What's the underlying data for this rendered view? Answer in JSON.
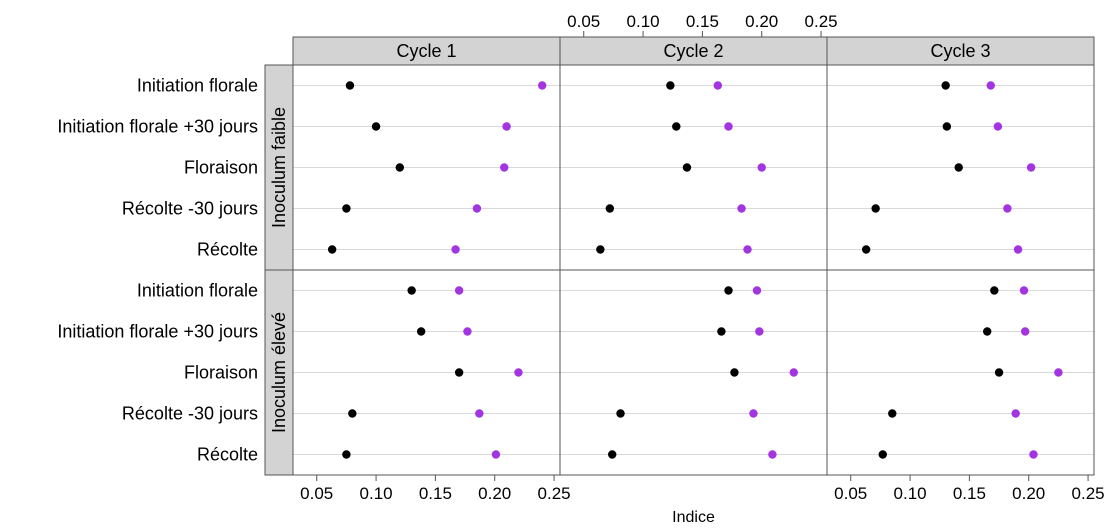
{
  "chart_data": {
    "type": "dot",
    "xlabel": "Indice",
    "xlim": [
      0.03,
      0.255
    ],
    "xticks": [
      0.05,
      0.1,
      0.15,
      0.2,
      0.25
    ],
    "xtick_labels": [
      "0.05",
      "0.10",
      "0.15",
      "0.20",
      "0.25"
    ],
    "columns": [
      "Cycle 1",
      "Cycle 2",
      "Cycle 3"
    ],
    "rows": [
      "Inoculum faible",
      "Inoculum élevé"
    ],
    "categories": [
      "Initiation florale",
      "Initiation florale +30 jours",
      "Floraison",
      "Récolte -30 jours",
      "Récolte"
    ],
    "grid": true,
    "series_colors": [
      "#000000",
      "#a335e0"
    ],
    "panels": [
      {
        "column": "Cycle 1",
        "row": "Inoculum faible",
        "series": [
          [
            0.078,
            0.1,
            0.12,
            0.075,
            0.063
          ],
          [
            0.24,
            0.21,
            0.208,
            0.185,
            0.167
          ]
        ]
      },
      {
        "column": "Cycle 2",
        "row": "Inoculum faible",
        "series": [
          [
            0.123,
            0.128,
            0.137,
            0.072,
            0.064
          ],
          [
            0.163,
            0.172,
            0.2,
            0.183,
            0.188
          ]
        ]
      },
      {
        "column": "Cycle 3",
        "row": "Inoculum faible",
        "series": [
          [
            0.13,
            0.131,
            0.141,
            0.071,
            0.063
          ],
          [
            0.168,
            0.174,
            0.202,
            0.182,
            0.191
          ]
        ]
      },
      {
        "column": "Cycle 1",
        "row": "Inoculum élevé",
        "series": [
          [
            0.13,
            0.138,
            0.17,
            0.08,
            0.075
          ],
          [
            0.17,
            0.177,
            0.22,
            0.187,
            0.201
          ]
        ]
      },
      {
        "column": "Cycle 2",
        "row": "Inoculum élevé",
        "series": [
          [
            0.172,
            0.166,
            0.177,
            0.081,
            0.074
          ],
          [
            0.196,
            0.198,
            0.227,
            0.193,
            0.209
          ]
        ]
      },
      {
        "column": "Cycle 3",
        "row": "Inoculum élevé",
        "series": [
          [
            0.171,
            0.165,
            0.175,
            0.085,
            0.077
          ],
          [
            0.196,
            0.197,
            0.225,
            0.189,
            0.204
          ]
        ]
      }
    ]
  }
}
